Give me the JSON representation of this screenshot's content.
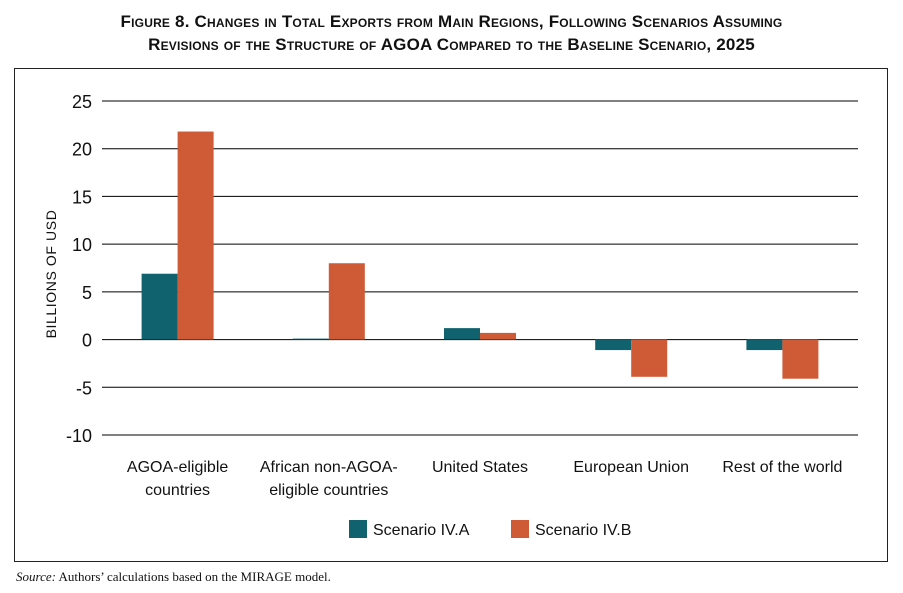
{
  "figure": {
    "title_line1": "Figure 8. Changes in Total Exports from Main Regions, Following Scenarios Assuming",
    "title_line2": "Revisions of the Structure of AGOA Compared to the Baseline Scenario, 2025",
    "source_label": "Source:",
    "source_text": " Authors’ calculations based on the MIRAGE model."
  },
  "colors": {
    "scenario_a": "#10626f",
    "scenario_b": "#cf5a36",
    "grid": "#000000"
  },
  "chart_data": {
    "type": "bar",
    "title": "Figure 8. Changes in Total Exports from Main Regions, Following Scenarios Assuming Revisions of the Structure of AGOA Compared to the Baseline Scenario, 2025",
    "categories": [
      [
        "AGOA-eligible",
        "countries"
      ],
      [
        "African non-AGOA-",
        "eligible countries"
      ],
      [
        "United States"
      ],
      [
        "European Union"
      ],
      [
        "Rest of the world"
      ]
    ],
    "series": [
      {
        "name": "Scenario IV.A",
        "color": "#10626f",
        "values": [
          6.9,
          0.1,
          1.2,
          -1.1,
          -1.1
        ]
      },
      {
        "name": "Scenario IV.B",
        "color": "#cf5a36",
        "values": [
          21.8,
          8.0,
          0.7,
          -3.9,
          -4.1
        ]
      }
    ],
    "ylabel": "BILLIONS OF USD",
    "xlabel": "",
    "ylim": [
      -10,
      25
    ],
    "yticks": [
      25,
      20,
      15,
      10,
      5,
      0,
      -5,
      -10
    ],
    "ytick_labels": [
      "25",
      "20",
      "15",
      "10",
      "5",
      "0",
      "-5",
      "-10"
    ],
    "grid": true,
    "legend_position": "bottom-center"
  }
}
